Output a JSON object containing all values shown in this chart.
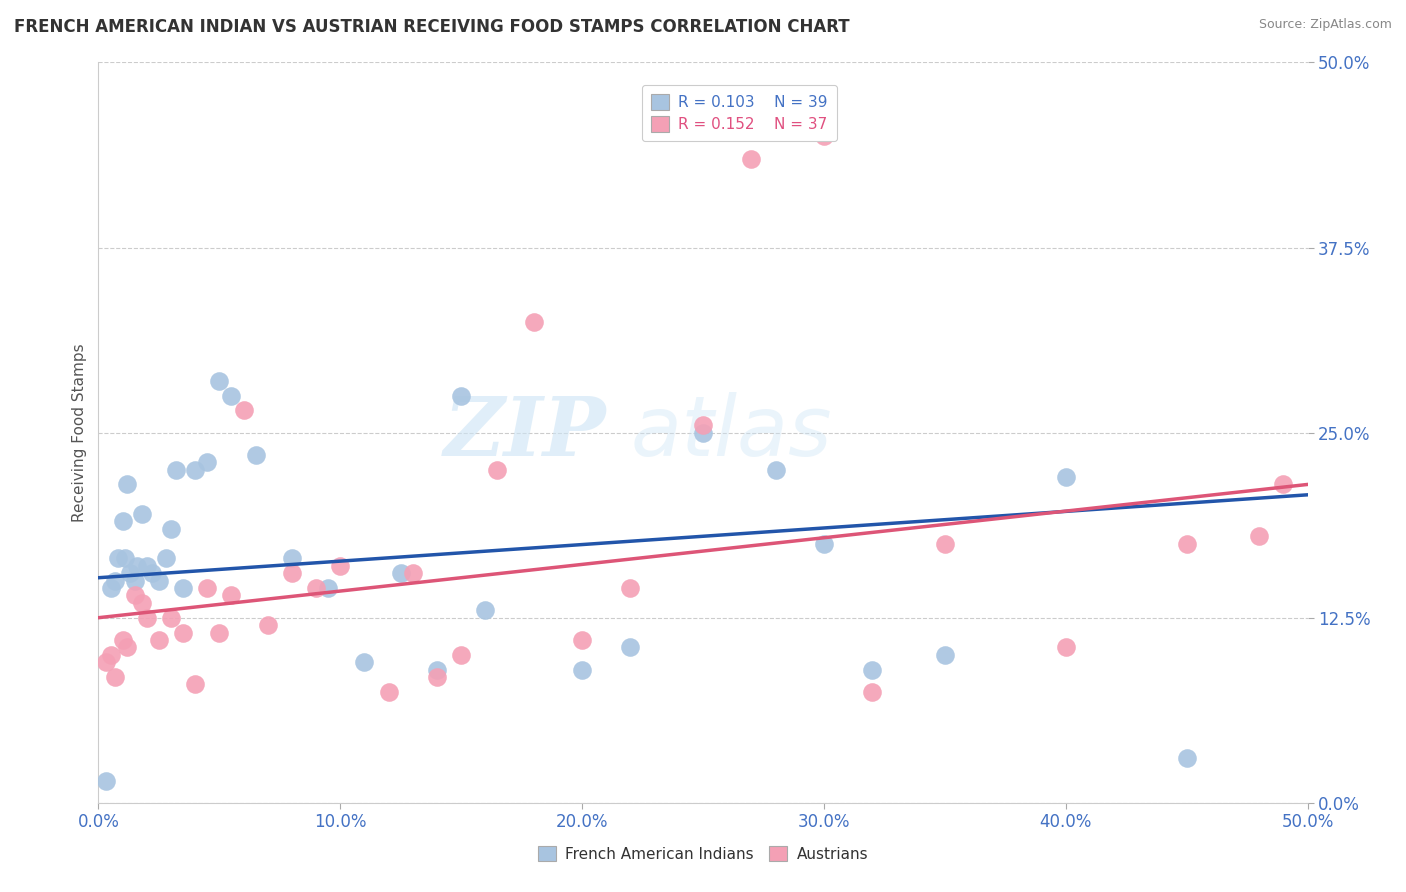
{
  "title": "FRENCH AMERICAN INDIAN VS AUSTRIAN RECEIVING FOOD STAMPS CORRELATION CHART",
  "source": "Source: ZipAtlas.com",
  "ylabel": "Receiving Food Stamps",
  "xlim": [
    0.0,
    50.0
  ],
  "ylim": [
    0.0,
    50.0
  ],
  "yticks": [
    0.0,
    12.5,
    25.0,
    37.5,
    50.0
  ],
  "xticks": [
    0.0,
    10.0,
    20.0,
    30.0,
    40.0,
    50.0
  ],
  "legend_r_blue": "R = 0.103",
  "legend_n_blue": "N = 39",
  "legend_r_pink": "R = 0.152",
  "legend_n_pink": "N = 37",
  "legend_label_blue": "French American Indians",
  "legend_label_pink": "Austrians",
  "blue_color": "#a8c4e0",
  "pink_color": "#f4a0b5",
  "line_blue": "#2255aa",
  "line_pink": "#dd5577",
  "watermark1": "ZIP",
  "watermark2": "atlas",
  "blue_points_x": [
    0.3,
    0.5,
    0.7,
    0.8,
    1.0,
    1.1,
    1.3,
    1.5,
    1.6,
    1.8,
    2.0,
    2.2,
    2.5,
    2.8,
    3.0,
    3.5,
    4.0,
    4.5,
    5.0,
    5.5,
    6.5,
    8.0,
    9.5,
    11.0,
    12.5,
    14.0,
    15.0,
    16.0,
    20.0,
    22.0,
    25.0,
    28.0,
    30.0,
    32.0,
    35.0,
    40.0,
    45.0,
    1.2,
    3.2
  ],
  "blue_points_y": [
    1.5,
    14.5,
    15.0,
    16.5,
    19.0,
    16.5,
    15.5,
    15.0,
    16.0,
    19.5,
    16.0,
    15.5,
    15.0,
    16.5,
    18.5,
    14.5,
    22.5,
    23.0,
    28.5,
    27.5,
    23.5,
    16.5,
    14.5,
    9.5,
    15.5,
    9.0,
    27.5,
    13.0,
    9.0,
    10.5,
    25.0,
    22.5,
    17.5,
    9.0,
    10.0,
    22.0,
    3.0,
    21.5,
    22.5
  ],
  "pink_points_x": [
    0.3,
    0.5,
    0.7,
    1.0,
    1.2,
    1.5,
    1.8,
    2.0,
    2.5,
    3.0,
    3.5,
    4.0,
    4.5,
    5.0,
    5.5,
    6.0,
    7.0,
    8.0,
    9.0,
    10.0,
    12.0,
    13.0,
    14.0,
    15.0,
    16.5,
    18.0,
    20.0,
    22.0,
    25.0,
    27.0,
    30.0,
    35.0,
    40.0,
    45.0,
    48.0,
    49.0,
    32.0
  ],
  "pink_points_y": [
    9.5,
    10.0,
    8.5,
    11.0,
    10.5,
    14.0,
    13.5,
    12.5,
    11.0,
    12.5,
    11.5,
    8.0,
    14.5,
    11.5,
    14.0,
    26.5,
    12.0,
    15.5,
    14.5,
    16.0,
    7.5,
    15.5,
    8.5,
    10.0,
    22.5,
    32.5,
    11.0,
    14.5,
    25.5,
    43.5,
    45.0,
    17.5,
    10.5,
    17.5,
    18.0,
    21.5,
    7.5
  ],
  "blue_line_y_start": 15.2,
  "blue_line_y_end": 20.8,
  "pink_line_y_start": 12.5,
  "pink_line_y_end": 21.5
}
